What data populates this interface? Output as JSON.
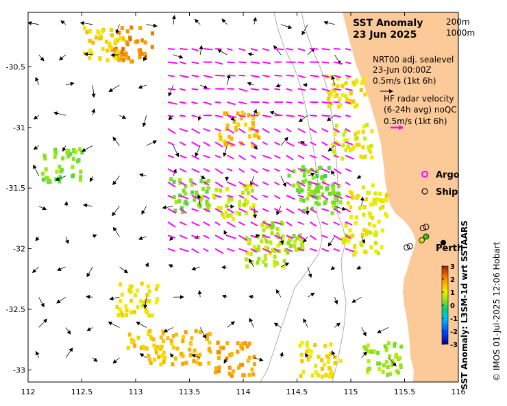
{
  "map": {
    "title": "SST Anomaly",
    "date": "23 Jun 2025",
    "depth_contours": [
      "200m",
      "1000m"
    ],
    "lon_ticks": [
      "112",
      "112.5",
      "113",
      "113.5",
      "114",
      "114.5",
      "115",
      "115.5",
      "116"
    ],
    "lat_ticks": [
      "-30.5",
      "-31",
      "-31.5",
      "-32",
      "-32.5",
      "-33"
    ],
    "lon_range": [
      112,
      116
    ],
    "lat_range": [
      -33.1,
      -30.05
    ]
  },
  "sealevel": {
    "line1": "NRT00 adj. sealevel",
    "line2": "23-Jun 00:00Z",
    "scale": "0.5m/s (1kt 6h)"
  },
  "radar": {
    "line1": "HF radar velocity",
    "line2": "(6-24h avg) noQC",
    "scale": "0.5m/s (1kt 6h)"
  },
  "legend": {
    "argo": "Argo",
    "ship": "Ship"
  },
  "city": {
    "name": "Perth",
    "lon": 115.86,
    "lat": -31.95
  },
  "colorbar": {
    "label": "SST Anomaly: L3SM-1d wrt SSTAARS",
    "ticks": [
      "3",
      "2",
      "1",
      "0",
      "-1",
      "-2",
      "-3"
    ],
    "range": [
      -3,
      3
    ]
  },
  "credit": "© IMOS 01-Jul-2025 12:06 Hobart",
  "colors": {
    "land": "#fcc998",
    "radar_arrow": "#ff00ff",
    "argo": "#ff00ff",
    "contour": "#999999"
  },
  "ship_positions": [
    {
      "lon": 115.52,
      "lat": -31.99
    },
    {
      "lon": 115.55,
      "lat": -31.98
    },
    {
      "lon": 115.67,
      "lat": -31.83
    },
    {
      "lon": 115.7,
      "lat": -31.82
    }
  ],
  "argo_positions": [],
  "anomaly_patches": [
    {
      "lon": 114.7,
      "lat": -31.55,
      "value": 0.4
    },
    {
      "lon": 114.6,
      "lat": -31.45,
      "value": 0.2
    },
    {
      "lon": 114.35,
      "lat": -31.9,
      "value": 0.5
    },
    {
      "lon": 114.2,
      "lat": -32.0,
      "value": 0.7
    },
    {
      "lon": 113.9,
      "lat": -31.6,
      "value": 0.8
    },
    {
      "lon": 113.5,
      "lat": -31.55,
      "value": 0.3
    },
    {
      "lon": 114.95,
      "lat": -30.7,
      "value": 1.2
    },
    {
      "lon": 115.0,
      "lat": -31.1,
      "value": 1.0
    },
    {
      "lon": 115.15,
      "lat": -31.6,
      "value": 1.1
    },
    {
      "lon": 115.1,
      "lat": -31.9,
      "value": 1.0
    },
    {
      "lon": 113.95,
      "lat": -31.0,
      "value": 1.5
    },
    {
      "lon": 112.95,
      "lat": -30.3,
      "value": 2.0
    },
    {
      "lon": 112.7,
      "lat": -30.3,
      "value": 1.3
    },
    {
      "lon": 113.9,
      "lat": -32.9,
      "value": 1.8
    },
    {
      "lon": 113.5,
      "lat": -32.8,
      "value": 1.6
    },
    {
      "lon": 113.1,
      "lat": -32.8,
      "value": 1.4
    },
    {
      "lon": 115.3,
      "lat": -32.9,
      "value": 0.5
    },
    {
      "lon": 114.7,
      "lat": -32.9,
      "value": 1.2
    },
    {
      "lon": 112.3,
      "lat": -31.3,
      "value": 0.3
    },
    {
      "lon": 113.0,
      "lat": -32.4,
      "value": 1.1
    }
  ]
}
